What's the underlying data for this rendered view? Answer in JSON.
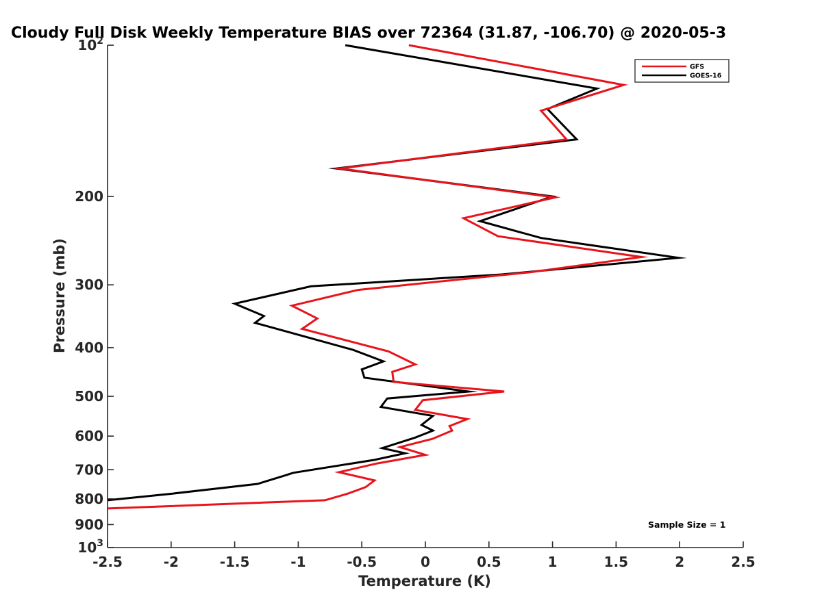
{
  "chart_data": {
    "type": "line",
    "title": "Cloudy Full Disk Weekly Temperature BIAS over 72364 (31.87, -106.70) @ 2020-05-3",
    "xlabel": "Temperature (K)",
    "ylabel": "Pressure (mb)",
    "xlim": [
      -2.5,
      2.5
    ],
    "ylim": [
      100,
      1000
    ],
    "y_scale": "log",
    "y_reversed": true,
    "x_ticks": [
      -2.5,
      -2,
      -1.5,
      -1,
      -0.5,
      0,
      0.5,
      1,
      1.5,
      2,
      2.5
    ],
    "x_tick_labels": [
      "-2.5",
      "-2",
      "-1.5",
      "-1",
      "-0.5",
      "0",
      "0.5",
      "1",
      "1.5",
      "2",
      "2.5"
    ],
    "y_ticks": [
      {
        "value": 100,
        "base": "10",
        "exp": "2"
      },
      {
        "value": 200,
        "label": "200"
      },
      {
        "value": 300,
        "label": "300"
      },
      {
        "value": 400,
        "label": "400"
      },
      {
        "value": 500,
        "label": "500"
      },
      {
        "value": 600,
        "label": "600"
      },
      {
        "value": 700,
        "label": "700"
      },
      {
        "value": 800,
        "label": "800"
      },
      {
        "value": 900,
        "label": "900"
      },
      {
        "value": 1000,
        "base": "10",
        "exp": "3"
      }
    ],
    "grid": false,
    "legend_position": "top-right",
    "series": [
      {
        "name": "GFS",
        "color": "#e8141c",
        "points": [
          [
            -0.13,
            100
          ],
          [
            1.56,
            120
          ],
          [
            0.91,
            135
          ],
          [
            1.11,
            154
          ],
          [
            -0.67,
            176
          ],
          [
            1.02,
            201
          ],
          [
            0.3,
            221
          ],
          [
            0.57,
            240
          ],
          [
            1.7,
            264
          ],
          [
            0.83,
            283
          ],
          [
            -0.53,
            307
          ],
          [
            -1.05,
            330
          ],
          [
            -0.85,
            350
          ],
          [
            -0.97,
            367
          ],
          [
            -0.29,
            407
          ],
          [
            -0.08,
            432
          ],
          [
            -0.26,
            447
          ],
          [
            -0.25,
            468
          ],
          [
            0.62,
            489
          ],
          [
            -0.02,
            509
          ],
          [
            -0.08,
            532
          ],
          [
            0.33,
            555
          ],
          [
            0.19,
            573
          ],
          [
            0.21,
            585
          ],
          [
            0.06,
            607
          ],
          [
            -0.2,
            631
          ],
          [
            0.0,
            654
          ],
          [
            -0.38,
            680
          ],
          [
            -0.68,
            708
          ],
          [
            -0.4,
            735
          ],
          [
            -0.47,
            758
          ],
          [
            -0.61,
            781
          ],
          [
            -0.79,
            805
          ],
          [
            -2.5,
            836
          ]
        ]
      },
      {
        "name": "GOES-16",
        "color": "#000000",
        "points": [
          [
            -0.63,
            100
          ],
          [
            1.35,
            122
          ],
          [
            0.96,
            134
          ],
          [
            1.19,
            154
          ],
          [
            -0.7,
            176
          ],
          [
            1.0,
            200
          ],
          [
            0.43,
            224
          ],
          [
            0.91,
            242
          ],
          [
            1.99,
            265
          ],
          [
            0.6,
            286
          ],
          [
            -0.9,
            302
          ],
          [
            -1.5,
            327
          ],
          [
            -1.27,
            346
          ],
          [
            -1.34,
            357
          ],
          [
            -0.57,
            404
          ],
          [
            -0.33,
            426
          ],
          [
            -0.5,
            442
          ],
          [
            -0.48,
            459
          ],
          [
            0.34,
            489
          ],
          [
            -0.3,
            505
          ],
          [
            -0.35,
            525
          ],
          [
            0.06,
            547
          ],
          [
            -0.03,
            570
          ],
          [
            0.06,
            585
          ],
          [
            -0.08,
            604
          ],
          [
            -0.34,
            634
          ],
          [
            -0.16,
            649
          ],
          [
            -0.4,
            669
          ],
          [
            -1.04,
            710
          ],
          [
            -1.1,
            718
          ],
          [
            -1.32,
            747
          ],
          [
            -1.99,
            781
          ],
          [
            -2.5,
            805
          ]
        ]
      }
    ],
    "annotations": [
      {
        "text": "Sample Size = 1",
        "position": "bottom-right"
      }
    ]
  }
}
